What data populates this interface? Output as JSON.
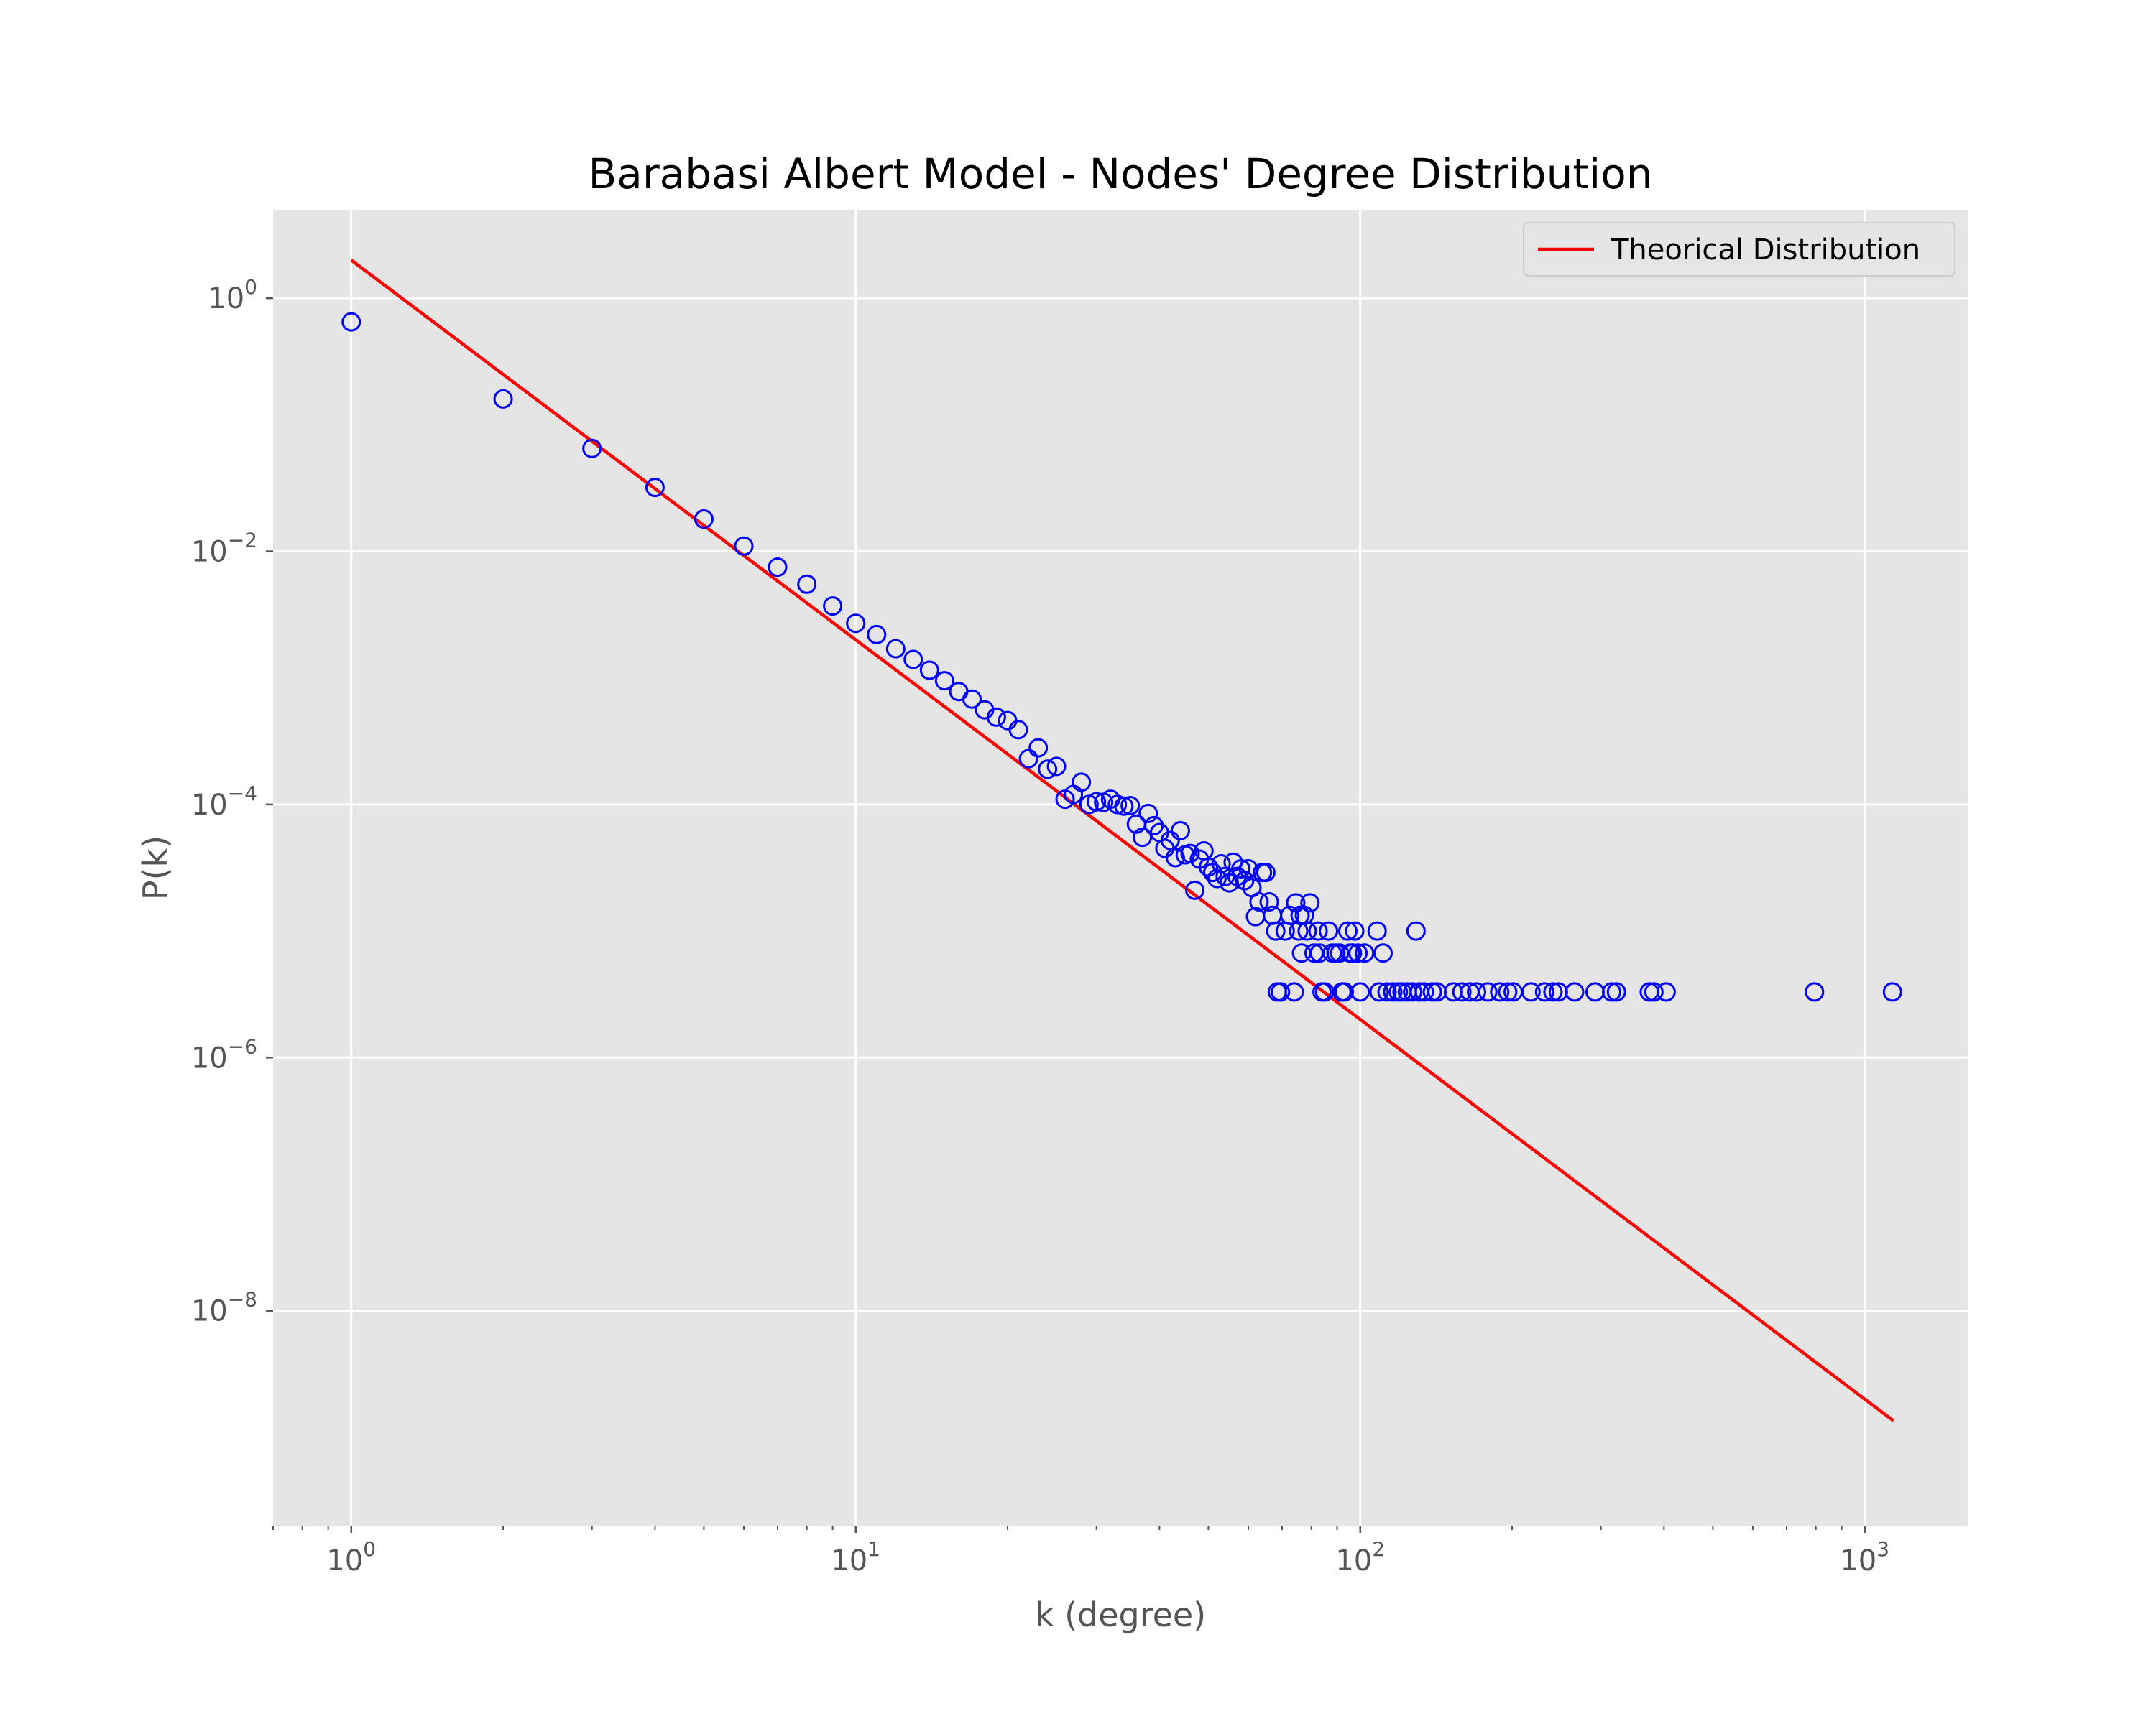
{
  "chart_data": {
    "type": "scatter",
    "title": "Barabasi Albert Model - Nodes' Degree Distribution",
    "xlabel": "k (degree)",
    "ylabel": "P(k)",
    "xscale": "log",
    "yscale": "log",
    "xlim": [
      0.7,
      1600
    ],
    "ylim": [
      2e-10,
      5
    ],
    "xticks": [
      {
        "value": 1,
        "base": "10",
        "exp": "0"
      },
      {
        "value": 10,
        "base": "10",
        "exp": "1"
      },
      {
        "value": 100,
        "base": "10",
        "exp": "2"
      },
      {
        "value": 1000,
        "base": "10",
        "exp": "3"
      }
    ],
    "yticks": [
      {
        "value": 1,
        "base": "10",
        "exp": "0"
      },
      {
        "value": 0.01,
        "base": "10",
        "exp": "−2"
      },
      {
        "value": 0.0001,
        "base": "10",
        "exp": "−4"
      },
      {
        "value": 1e-06,
        "base": "10",
        "exp": "−6"
      },
      {
        "value": 1e-08,
        "base": "10",
        "exp": "−8"
      }
    ],
    "grid": true,
    "background": "#e5e5e5",
    "legend": {
      "position": "top-right"
    },
    "series": [
      {
        "name": "Theorical Distribution",
        "kind": "line",
        "color": "#ff0000",
        "x": [
          1,
          1140
        ],
        "y": [
          2.0,
          1.35e-09
        ]
      },
      {
        "kind": "scatter",
        "marker": "hollow-circle",
        "color": "#0000ff",
        "points": [
          [
            1,
            0.65
          ],
          [
            2,
            0.16
          ],
          [
            3,
            0.065
          ],
          [
            4,
            0.032
          ],
          [
            5,
            0.018
          ],
          [
            6,
            0.011
          ],
          [
            7,
            0.0075
          ],
          [
            8,
            0.0055
          ],
          [
            9,
            0.0037
          ],
          [
            10,
            0.0027
          ],
          [
            11,
            0.0022
          ],
          [
            12,
            0.0017
          ],
          [
            13,
            0.0014
          ],
          [
            14,
            0.00115
          ],
          [
            15,
            0.00095
          ],
          [
            16,
            0.00078
          ],
          [
            17,
            0.00068
          ],
          [
            18,
            0.00056
          ],
          [
            19,
            0.00049
          ],
          [
            20,
            0.00046
          ],
          [
            21,
            0.00039
          ],
          [
            22,
            0.00023
          ],
          [
            23,
            0.00028
          ],
          [
            24,
            0.00019
          ],
          [
            25,
            0.0002
          ],
          [
            26,
            0.00011
          ],
          [
            27,
            0.00012
          ],
          [
            28,
            0.00015
          ],
          [
            29,
            0.0001
          ],
          [
            30,
            0.000105
          ],
          [
            31,
            0.000104
          ],
          [
            32,
            0.00011
          ],
          [
            33,
            0.0001
          ],
          [
            34,
            9.7e-05
          ],
          [
            35,
            9.8e-05
          ],
          [
            36,
            7e-05
          ],
          [
            37,
            5.5e-05
          ],
          [
            38,
            8.5e-05
          ],
          [
            39,
            6.8e-05
          ],
          [
            40,
            6e-05
          ],
          [
            41,
            4.5e-05
          ],
          [
            42,
            5.2e-05
          ],
          [
            43,
            3.8e-05
          ],
          [
            44,
            6.2e-05
          ],
          [
            45,
            4e-05
          ],
          [
            46,
            4.1e-05
          ],
          [
            47,
            2.1e-05
          ],
          [
            48,
            3.7e-05
          ],
          [
            49,
            4.3e-05
          ],
          [
            50,
            3.2e-05
          ],
          [
            51,
            2.9e-05
          ],
          [
            52,
            2.6e-05
          ],
          [
            53,
            3.4e-05
          ],
          [
            54,
            2.7e-05
          ],
          [
            55,
            2.4e-05
          ],
          [
            56,
            3.5e-05
          ],
          [
            57,
            2.7e-05
          ],
          [
            58,
            3.1e-05
          ],
          [
            59,
            2.5e-05
          ],
          [
            60,
            3.1e-05
          ],
          [
            61,
            2.2e-05
          ],
          [
            62,
            1.3e-05
          ],
          [
            63,
            1.7e-05
          ],
          [
            64,
            2.9e-05
          ],
          [
            65,
            2.9e-05
          ],
          [
            66,
            1.7e-05
          ],
          [
            67,
            1.33e-05
          ],
          [
            68,
            1e-05
          ],
          [
            68.5,
            3.3e-06
          ],
          [
            69.5,
            3.3e-06
          ],
          [
            71,
            1e-05
          ],
          [
            72.5,
            1.33e-05
          ],
          [
            74,
            3.3e-06
          ],
          [
            74.5,
            1.67e-05
          ],
          [
            75.5,
            1e-05
          ],
          [
            76,
            1.33e-05
          ],
          [
            76.5,
            6.7e-06
          ],
          [
            77.5,
            1.33e-05
          ],
          [
            78.5,
            1e-05
          ],
          [
            79.5,
            1.67e-05
          ],
          [
            81,
            6.7e-06
          ],
          [
            82.5,
            1e-05
          ],
          [
            83,
            6.7e-06
          ],
          [
            84,
            3.3e-06
          ],
          [
            85,
            3.3e-06
          ],
          [
            86.5,
            1e-05
          ],
          [
            88,
            6.7e-06
          ],
          [
            89.5,
            6.7e-06
          ],
          [
            91,
            6.7e-06
          ],
          [
            92,
            3.3e-06
          ],
          [
            93,
            3.3e-06
          ],
          [
            94.5,
            1e-05
          ],
          [
            95.5,
            6.7e-06
          ],
          [
            96.5,
            6.7e-06
          ],
          [
            97.5,
            1e-05
          ],
          [
            99,
            6.7e-06
          ],
          [
            100,
            3.3e-06
          ],
          [
            102,
            6.7e-06
          ],
          [
            108,
            1e-05
          ],
          [
            109,
            3.3e-06
          ],
          [
            111,
            6.7e-06
          ],
          [
            113,
            3.3e-06
          ],
          [
            116,
            3.3e-06
          ],
          [
            119,
            3.3e-06
          ],
          [
            121,
            3.3e-06
          ],
          [
            124,
            3.3e-06
          ],
          [
            127,
            3.3e-06
          ],
          [
            129,
            1e-05
          ],
          [
            131,
            3.3e-06
          ],
          [
            134,
            3.3e-06
          ],
          [
            139,
            3.3e-06
          ],
          [
            142,
            3.3e-06
          ],
          [
            153,
            3.3e-06
          ],
          [
            159,
            3.3e-06
          ],
          [
            165,
            3.3e-06
          ],
          [
            170,
            3.3e-06
          ],
          [
            179,
            3.3e-06
          ],
          [
            189,
            3.3e-06
          ],
          [
            196,
            3.3e-06
          ],
          [
            201,
            3.3e-06
          ],
          [
            218,
            3.3e-06
          ],
          [
            232,
            3.3e-06
          ],
          [
            241,
            3.3e-06
          ],
          [
            247,
            3.3e-06
          ],
          [
            266,
            3.3e-06
          ],
          [
            292,
            3.3e-06
          ],
          [
            315,
            3.3e-06
          ],
          [
            322,
            3.3e-06
          ],
          [
            374,
            3.3e-06
          ],
          [
            382,
            3.3e-06
          ],
          [
            404,
            3.3e-06
          ],
          [
            795,
            3.3e-06
          ],
          [
            1135,
            3.3e-06
          ]
        ]
      }
    ]
  }
}
